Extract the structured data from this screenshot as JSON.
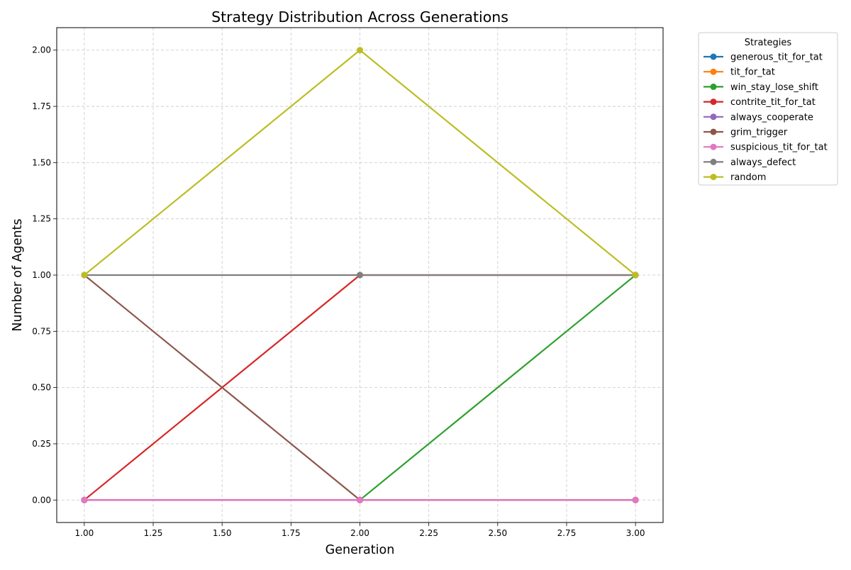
{
  "chart_data": {
    "type": "line",
    "title": "Strategy Distribution Across Generations",
    "xlabel": "Generation",
    "ylabel": "Number of Agents",
    "xlim": [
      0.9,
      3.1
    ],
    "ylim": [
      -0.1,
      2.1
    ],
    "x_ticks": [
      1.0,
      1.25,
      1.5,
      1.75,
      2.0,
      2.25,
      2.5,
      2.75,
      3.0
    ],
    "y_ticks": [
      0.0,
      0.25,
      0.5,
      0.75,
      1.0,
      1.25,
      1.5,
      1.75,
      2.0
    ],
    "x_tick_labels": [
      "1.00",
      "1.25",
      "1.50",
      "1.75",
      "2.00",
      "2.25",
      "2.50",
      "2.75",
      "3.00"
    ],
    "y_tick_labels": [
      "0.00",
      "0.25",
      "0.50",
      "0.75",
      "1.00",
      "1.25",
      "1.50",
      "1.75",
      "2.00"
    ],
    "grid": true,
    "legend": {
      "title": "Strategies",
      "placement": "outside-top-right"
    },
    "x": [
      1,
      2,
      3
    ],
    "series": [
      {
        "name": "generous_tit_for_tat",
        "color": "#1f77b4",
        "values": [
          0,
          0,
          0
        ]
      },
      {
        "name": "tit_for_tat",
        "color": "#ff7f0e",
        "values": [
          0,
          0,
          0
        ]
      },
      {
        "name": "win_stay_lose_shift",
        "color": "#2ca02c",
        "values": [
          0,
          0,
          1
        ]
      },
      {
        "name": "contrite_tit_for_tat",
        "color": "#d62728",
        "values": [
          0,
          1,
          1
        ]
      },
      {
        "name": "always_cooperate",
        "color": "#9467bd",
        "values": [
          0,
          0,
          0
        ]
      },
      {
        "name": "grim_trigger",
        "color": "#8c564b",
        "values": [
          1,
          0,
          0
        ]
      },
      {
        "name": "suspicious_tit_for_tat",
        "color": "#e377c2",
        "values": [
          0,
          0,
          0
        ]
      },
      {
        "name": "always_defect",
        "color": "#7f7f7f",
        "values": [
          1,
          1,
          1
        ]
      },
      {
        "name": "random",
        "color": "#bcbd22",
        "values": [
          1,
          2,
          1
        ]
      }
    ]
  }
}
